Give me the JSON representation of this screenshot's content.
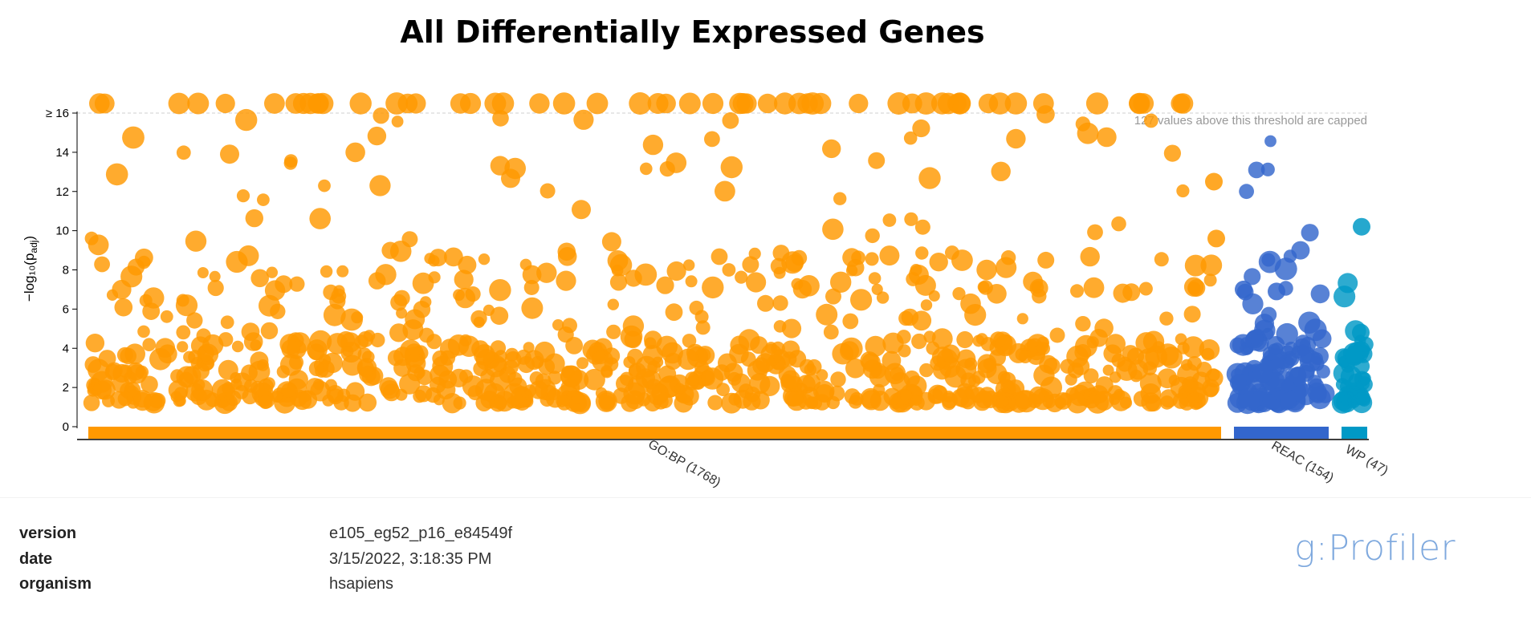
{
  "chart_data": {
    "type": "scatter",
    "title": "All Differentially Expressed Genes",
    "ylabel": "−log₁₀(p_adj)",
    "ylim": [
      0,
      16
    ],
    "yticks": [
      "0",
      "2",
      "4",
      "6",
      "8",
      "10",
      "12",
      "14",
      "≥ 16"
    ],
    "cap_note": "127 values above this threshold are capped",
    "sources": [
      {
        "name": "GO:BP (1768)",
        "color": "#ff9900",
        "count": 1768
      },
      {
        "name": "REAC (154)",
        "color": "#3366cc",
        "count": 154
      },
      {
        "name": "WP (47)",
        "color": "#0099c6",
        "count": 47
      }
    ],
    "notable_points": [
      {
        "source": "WP (47)",
        "y": 10.2
      },
      {
        "source": "WP (47)",
        "y": 4.8
      },
      {
        "source": "WP (47)",
        "y": 3.7
      },
      {
        "source": "REAC (154)",
        "y": 7.0
      },
      {
        "source": "REAC (154)",
        "y": 6.9
      },
      {
        "source": "GO:BP (1768)",
        "y": 12.5
      },
      {
        "source": "GO:BP (1768)",
        "y": 9.6
      }
    ]
  },
  "meta": {
    "rows": [
      {
        "key": "version",
        "value": "e105_eg52_p16_e84549f"
      },
      {
        "key": "date",
        "value": "3/15/2022, 3:18:35 PM"
      },
      {
        "key": "organism",
        "value": "hsapiens"
      }
    ],
    "brand": "g:Profiler"
  }
}
